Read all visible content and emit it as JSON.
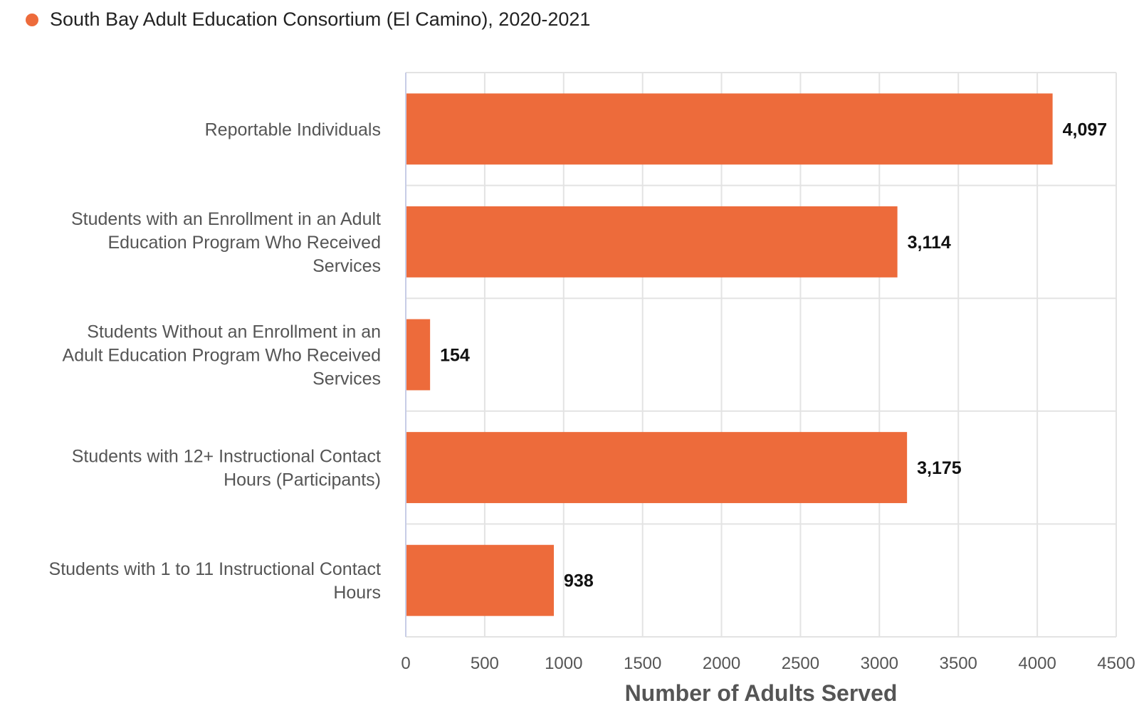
{
  "chart_data": {
    "type": "bar",
    "orientation": "horizontal",
    "title": "",
    "xlabel": "Number of Adults Served",
    "ylabel": "",
    "xlim": [
      0,
      4500
    ],
    "xticks": [
      0,
      500,
      1000,
      1500,
      2000,
      2500,
      3000,
      3500,
      4000,
      4500
    ],
    "grid": true,
    "legend_position": "top-left",
    "categories": [
      "Reportable Individuals",
      "Students with an Enrollment in an Adult Education Program Who Received Services",
      "Students Without an Enrollment in an Adult Education Program Who Received Services",
      "Students with 12+ Instructional Contact Hours (Participants)",
      "Students with 1 to 11 Instructional Contact Hours"
    ],
    "category_lines": [
      [
        "Reportable Individuals"
      ],
      [
        "Students with an Enrollment in an Adult",
        "Education Program Who Received",
        "Services"
      ],
      [
        "Students Without an Enrollment in an",
        "Adult Education Program Who Received",
        "Services"
      ],
      [
        "Students with 12+ Instructional Contact",
        "Hours (Participants)"
      ],
      [
        "Students with 1 to 11 Instructional Contact",
        "Hours"
      ]
    ],
    "series": [
      {
        "name": "South Bay Adult Education Consortium (El Camino), 2020-2021",
        "color": "#ED6B3B",
        "values": [
          4097,
          3114,
          154,
          3175,
          938
        ],
        "value_labels": [
          "4,097",
          "3,114",
          "154",
          "3,175",
          "938"
        ]
      }
    ]
  }
}
